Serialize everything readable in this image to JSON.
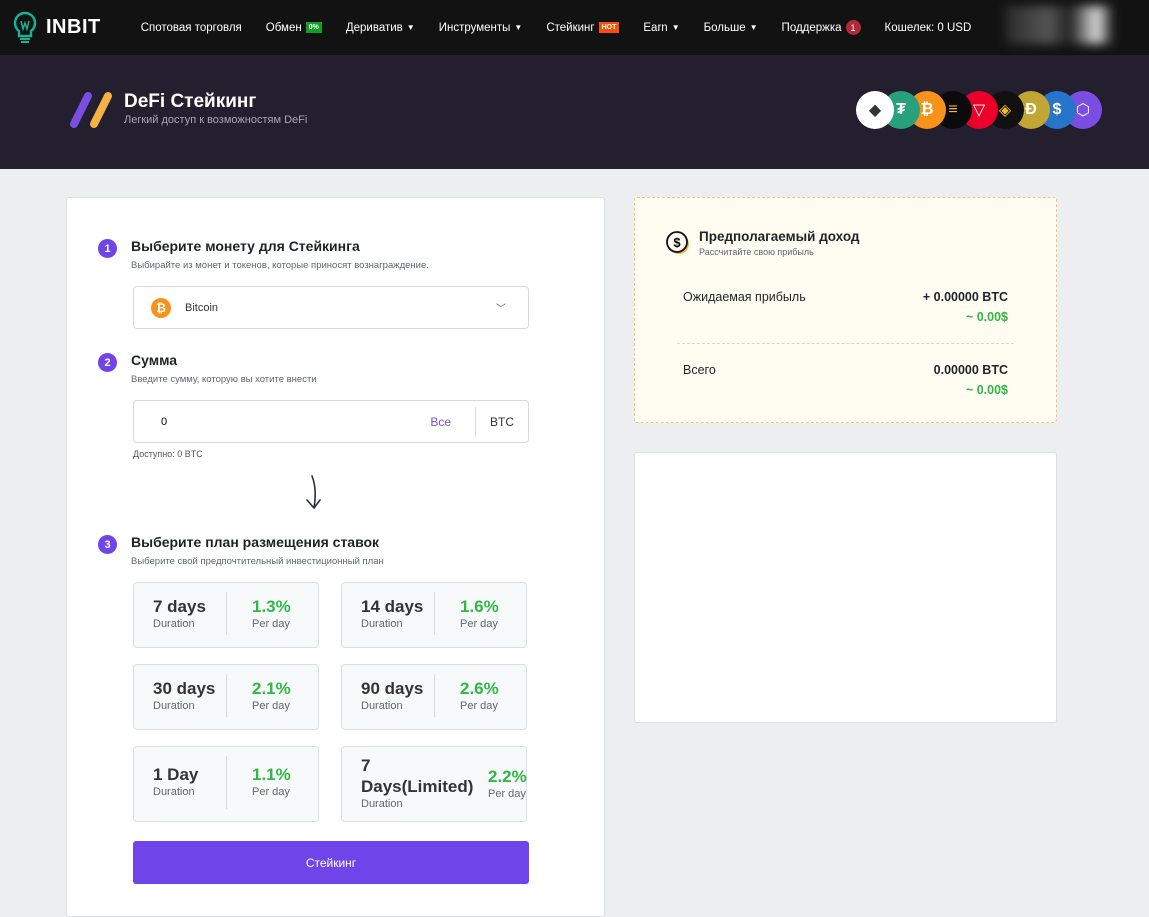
{
  "header": {
    "brand": "INBIT",
    "nav": [
      {
        "label": "Спотовая торговля"
      },
      {
        "label": "Обмен",
        "badge": "0%"
      },
      {
        "label": "Дериватив",
        "caret": true
      },
      {
        "label": "Инструменты",
        "caret": true
      },
      {
        "label": "Стейкинг",
        "badge": "HOT"
      },
      {
        "label": "Earn",
        "caret": true
      },
      {
        "label": "Больше",
        "caret": true
      },
      {
        "label": "Поддержка",
        "count": "1"
      },
      {
        "label": "Кошелек: 0 USD"
      }
    ]
  },
  "banner": {
    "title": "DeFi Стейкинг",
    "subtitle": "Легкий доступ к возможностям DeFi",
    "coins": [
      {
        "icon": "ethereum-icon",
        "color": "#ffffff"
      },
      {
        "icon": "tether-icon",
        "color": "#26a17b"
      },
      {
        "icon": "bitcoin-icon",
        "color": "#f7931a"
      },
      {
        "icon": "solana-icon",
        "color": "#0b0b0b"
      },
      {
        "icon": "tron-icon",
        "color": "#eb0029"
      },
      {
        "icon": "bnb-icon",
        "color": "#111111"
      },
      {
        "icon": "dogecoin-icon",
        "color": "#c2a633"
      },
      {
        "icon": "usdc-icon",
        "color": "#2775ca"
      },
      {
        "icon": "chainlink-icon",
        "color": "#7b4ee3"
      }
    ]
  },
  "steps": [
    {
      "num": "1",
      "title": "Выберите монету для Стейкинга",
      "subtitle": "Выбирайте из монет и токенов, которые приносят вознаграждение."
    },
    {
      "num": "2",
      "title": "Сумма",
      "subtitle": "Введите сумму, которую вы хотите внести"
    },
    {
      "num": "3",
      "title": "Выберите план размещения ставок",
      "subtitle": "Выберите свой предпочтительный инвестиционный план"
    }
  ],
  "coin_select": {
    "value": "Bitcoin"
  },
  "amount": {
    "value": "0",
    "all_label": "Все",
    "unit": "BTC",
    "available": "Доступно: 0 BTC"
  },
  "plans": [
    {
      "duration": "7 days",
      "duration_label": "Duration",
      "rate": "1.3%",
      "rate_label": "Per day"
    },
    {
      "duration": "14 days",
      "duration_label": "Duration",
      "rate": "1.6%",
      "rate_label": "Per day"
    },
    {
      "duration": "30 days",
      "duration_label": "Duration",
      "rate": "2.1%",
      "rate_label": "Per day"
    },
    {
      "duration": "90 days",
      "duration_label": "Duration",
      "rate": "2.6%",
      "rate_label": "Per day"
    },
    {
      "duration": "1 Day",
      "duration_label": "Duration",
      "rate": "1.1%",
      "rate_label": "Per day"
    },
    {
      "duration": "7 Days(Limited)",
      "duration_label": "Duration",
      "rate": "2.2%",
      "rate_label": "Per day"
    }
  ],
  "submit_label": "Стейкинг",
  "income": {
    "title": "Предполагаемый доход",
    "subtitle": "Рассчитайте свою прибыль",
    "rows": [
      {
        "label": "Ожидаемая прибыль",
        "btc": "+ 0.00000 BTC",
        "usd": "~ 0.00$"
      },
      {
        "label": "Всего",
        "btc": "0.00000 BTC",
        "usd": "~ 0.00$"
      }
    ]
  },
  "colors": {
    "accent": "#6f45e9",
    "positive": "#2fb844",
    "banner": "#231f2e"
  }
}
